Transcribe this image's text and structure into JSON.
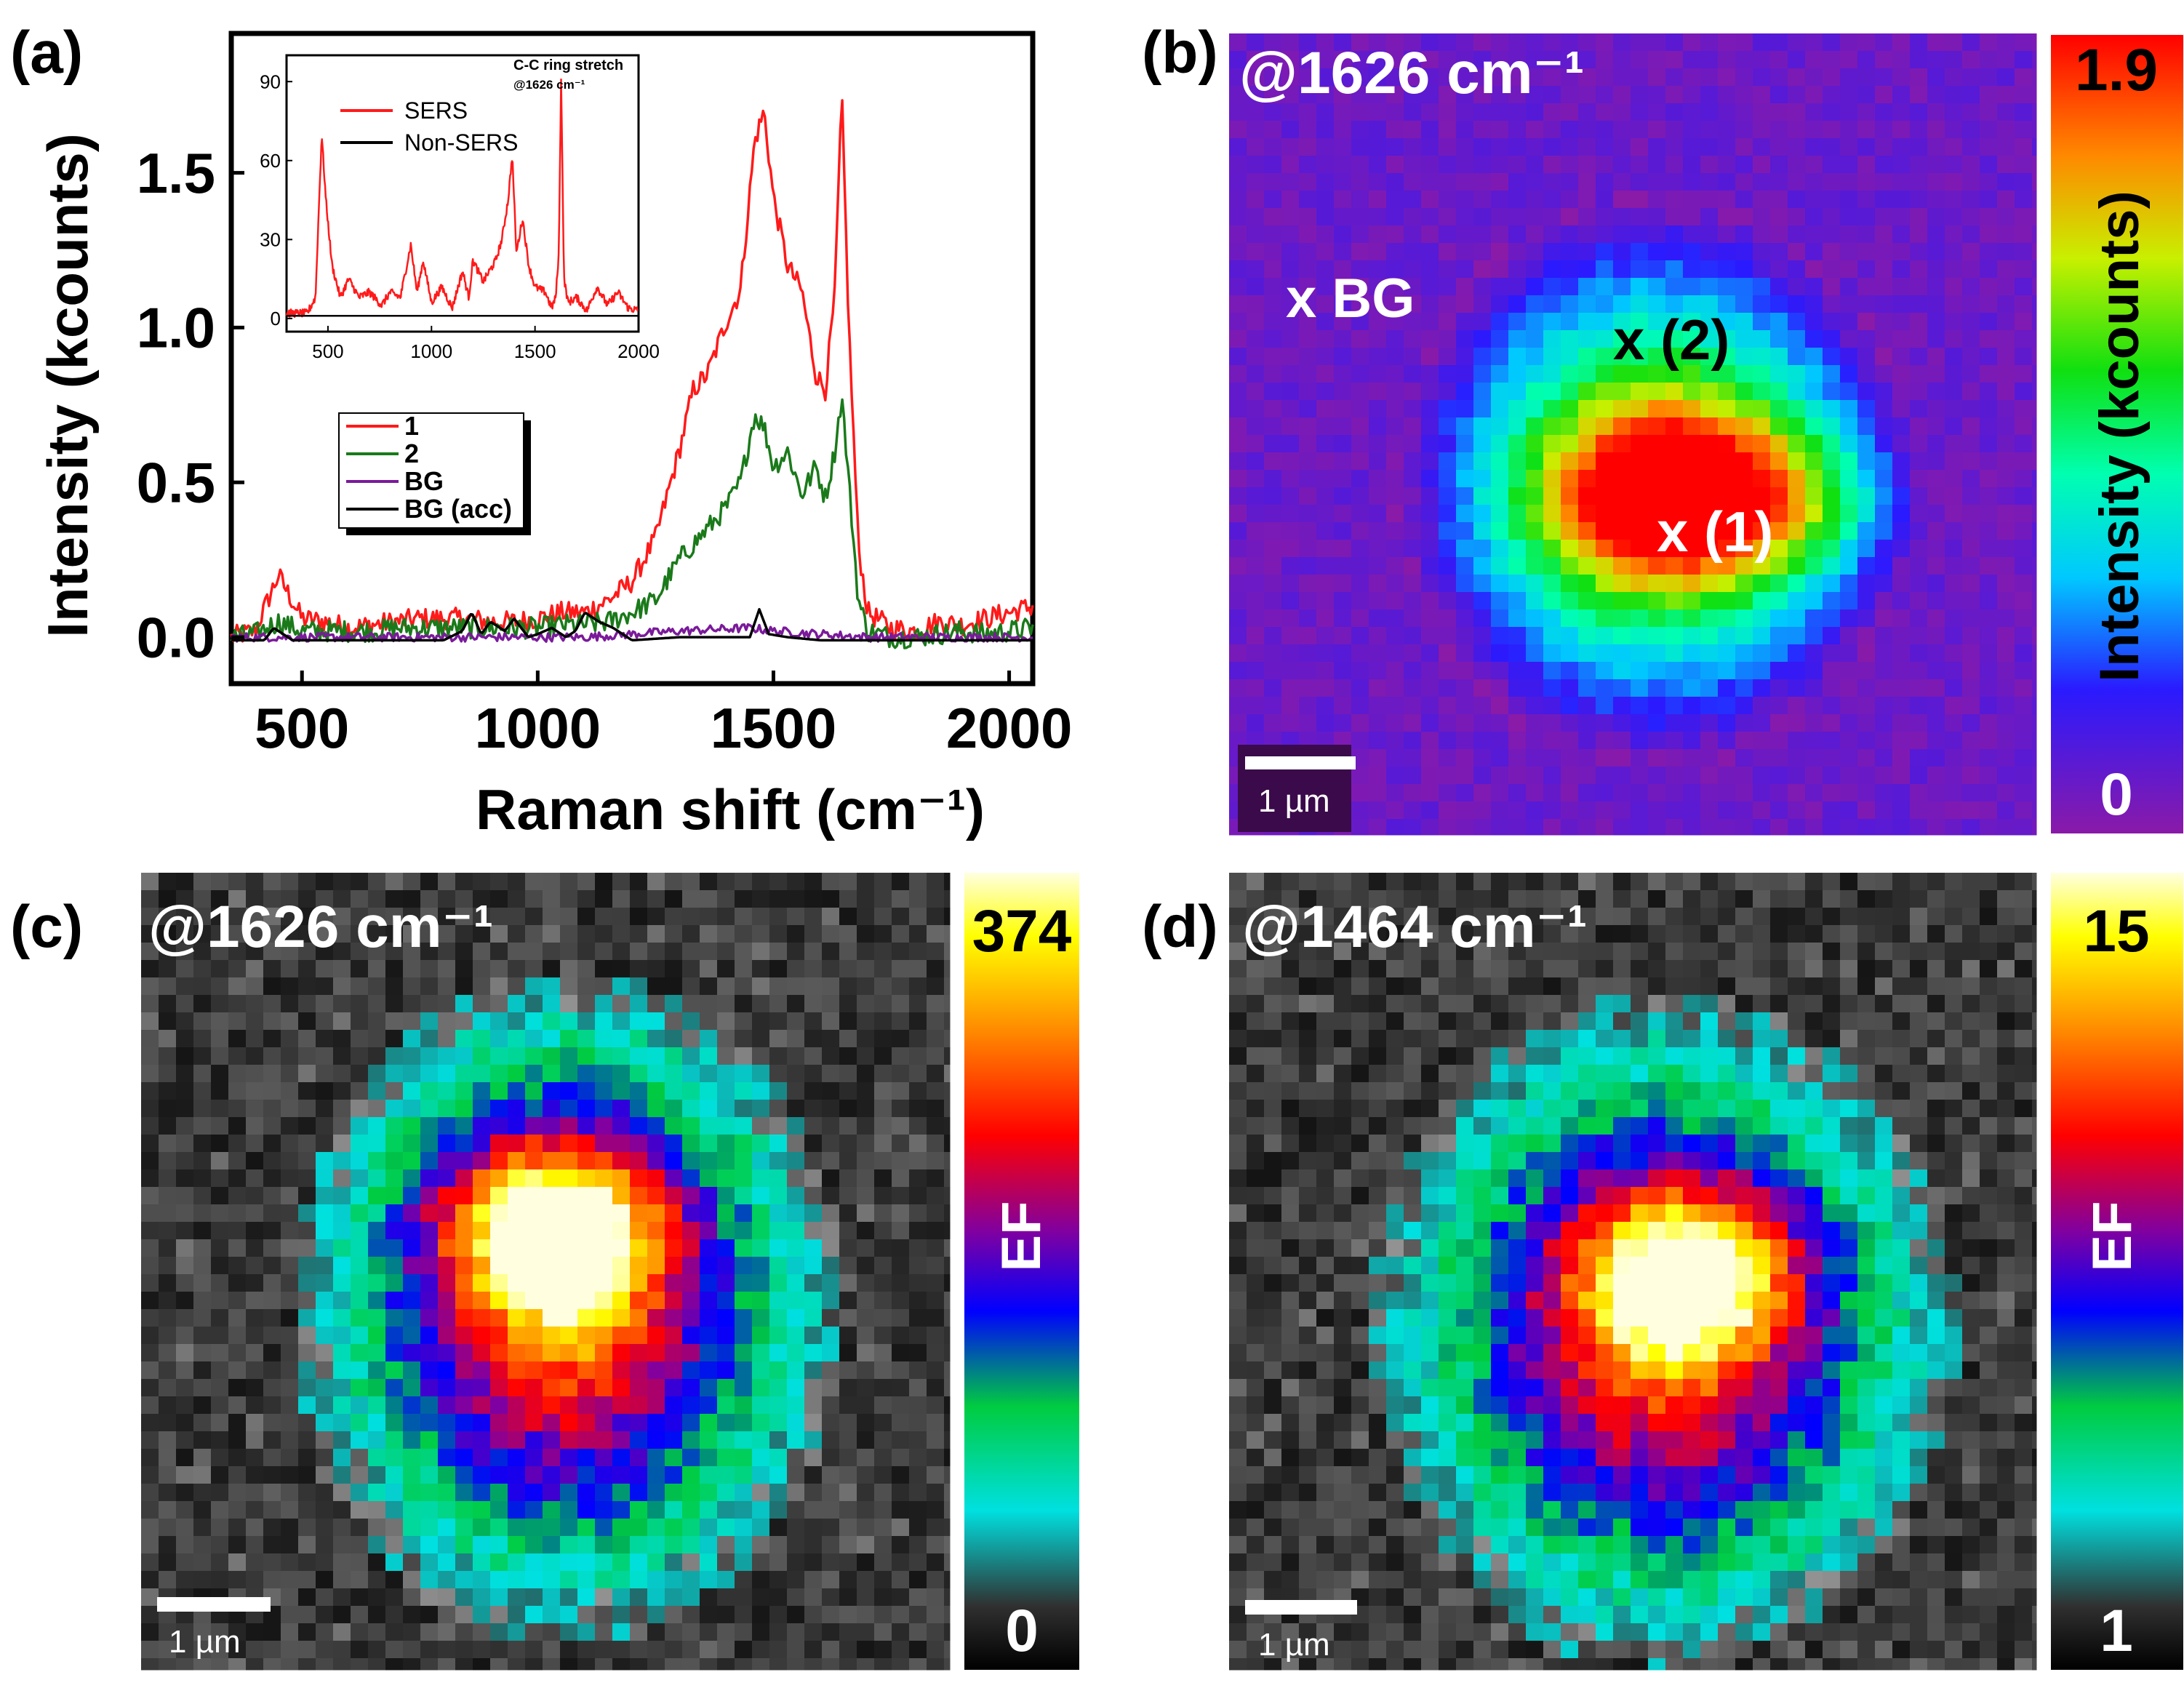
{
  "colors": {
    "red": "#ff1a1a",
    "green": "#1a7a1a",
    "purple": "#7a1a9a",
    "black": "#000000",
    "map_bg": "#8a1aa8"
  },
  "panel_labels": {
    "a": "(a)",
    "b": "(b)",
    "c": "(c)",
    "d": "(d)"
  },
  "chart_data": [
    {
      "panel": "(a)",
      "type": "line",
      "title": "",
      "xlabel": "Raman shift (cm⁻¹)",
      "ylabel": "Intensity (kcounts)",
      "xlim": [
        350,
        2050
      ],
      "ylim": [
        -0.15,
        1.95
      ],
      "xticks": [
        500,
        1000,
        1500,
        2000
      ],
      "xtick_labels": [
        "500",
        "1000",
        "1500",
        "2000"
      ],
      "yticks": [
        0.0,
        0.5,
        1.0,
        1.5
      ],
      "ytick_labels": [
        "0.0",
        "0.5",
        "1.0",
        "1.5"
      ],
      "legend": [
        "1",
        "2",
        "BG",
        "BG (acc)"
      ],
      "legend_position": "center-left",
      "series": [
        {
          "name": "1",
          "x": [
            350,
            400,
            450,
            500,
            550,
            600,
            650,
            700,
            750,
            800,
            850,
            900,
            950,
            1000,
            1050,
            1100,
            1150,
            1200,
            1250,
            1300,
            1330,
            1360,
            1400,
            1430,
            1460,
            1480,
            1500,
            1530,
            1560,
            1590,
            1610,
            1630,
            1645,
            1660,
            1680,
            1700,
            1750,
            1800,
            1850,
            1900,
            1950,
            2000,
            2050
          ],
          "y": [
            0.0,
            0.02,
            0.2,
            0.06,
            0.05,
            0.03,
            0.04,
            0.05,
            0.06,
            0.06,
            0.06,
            0.05,
            0.05,
            0.06,
            0.08,
            0.08,
            0.12,
            0.18,
            0.32,
            0.6,
            0.8,
            0.85,
            1.02,
            1.12,
            1.6,
            1.7,
            1.42,
            1.2,
            1.12,
            0.85,
            0.8,
            1.1,
            1.75,
            1.0,
            0.3,
            0.08,
            0.03,
            0.02,
            0.05,
            0.04,
            0.06,
            0.08,
            0.1
          ]
        },
        {
          "name": "2",
          "x": [
            350,
            400,
            450,
            500,
            550,
            600,
            650,
            700,
            750,
            800,
            850,
            900,
            950,
            1000,
            1050,
            1100,
            1150,
            1200,
            1250,
            1300,
            1330,
            1360,
            1400,
            1430,
            1460,
            1480,
            1500,
            1530,
            1560,
            1590,
            1610,
            1630,
            1645,
            1660,
            1680,
            1700,
            1750,
            1800,
            1850,
            1900,
            1950,
            2000,
            2050
          ],
          "y": [
            0.0,
            0.01,
            0.05,
            0.02,
            0.02,
            0.02,
            0.02,
            0.03,
            0.03,
            0.03,
            0.03,
            0.03,
            0.03,
            0.03,
            0.04,
            0.04,
            0.05,
            0.08,
            0.12,
            0.25,
            0.3,
            0.35,
            0.42,
            0.5,
            0.72,
            0.68,
            0.55,
            0.6,
            0.46,
            0.55,
            0.45,
            0.6,
            0.78,
            0.5,
            0.12,
            0.02,
            0.0,
            0.0,
            0.01,
            0.02,
            0.01,
            0.02,
            0.03
          ]
        },
        {
          "name": "BG",
          "x": [
            350,
            500,
            700,
            900,
            1100,
            1300,
            1450,
            1500,
            1600,
            1700,
            1850,
            2050
          ],
          "y": [
            0.0,
            0.0,
            0.0,
            0.0,
            0.0,
            0.02,
            0.03,
            0.02,
            0.01,
            0.0,
            0.0,
            0.0
          ]
        },
        {
          "name": "BG (acc)",
          "x": [
            350,
            420,
            440,
            480,
            520,
            600,
            700,
            800,
            840,
            860,
            880,
            900,
            930,
            950,
            980,
            1000,
            1030,
            1060,
            1080,
            1100,
            1130,
            1160,
            1200,
            1300,
            1400,
            1450,
            1470,
            1490,
            1530,
            1600,
            1700,
            1800,
            1900,
            2050
          ],
          "y": [
            -0.01,
            -0.01,
            0.03,
            -0.01,
            -0.01,
            -0.01,
            -0.01,
            -0.01,
            0.02,
            0.08,
            0.01,
            0.05,
            0.02,
            0.06,
            0.0,
            0.01,
            0.03,
            0.0,
            0.02,
            0.08,
            0.05,
            0.03,
            -0.01,
            0.0,
            0.0,
            0.0,
            0.09,
            0.01,
            0.0,
            -0.01,
            -0.01,
            -0.01,
            -0.01,
            -0.01
          ]
        }
      ]
    },
    {
      "panel": "(a) inset",
      "type": "line",
      "xlim": [
        300,
        2000
      ],
      "ylim": [
        -5,
        100
      ],
      "xticks": [
        500,
        1000,
        1500,
        2000
      ],
      "xtick_labels": [
        "500",
        "1000",
        "1500",
        "2000"
      ],
      "yticks": [
        0,
        30,
        60,
        90
      ],
      "ytick_labels": [
        "0",
        "30",
        "60",
        "90"
      ],
      "legend": [
        "SERS",
        "Non-SERS"
      ],
      "annotation_line1": "C-C ring stretch",
      "annotation_line2": "@1626 cm⁻¹",
      "series": [
        {
          "name": "SERS",
          "x": [
            300,
            400,
            440,
            455,
            470,
            490,
            520,
            560,
            600,
            650,
            700,
            760,
            800,
            850,
            900,
            930,
            960,
            1000,
            1050,
            1100,
            1150,
            1180,
            1200,
            1250,
            1280,
            1310,
            1340,
            1370,
            1390,
            1410,
            1440,
            1470,
            1500,
            1550,
            1580,
            1600,
            1615,
            1626,
            1640,
            1660,
            1700,
            1750,
            1800,
            1850,
            1900,
            1950,
            2000
          ],
          "y": [
            2,
            2,
            8,
            40,
            70,
            45,
            20,
            8,
            15,
            8,
            10,
            5,
            10,
            8,
            28,
            10,
            22,
            6,
            12,
            4,
            18,
            8,
            22,
            14,
            18,
            22,
            30,
            45,
            62,
            25,
            38,
            20,
            12,
            10,
            4,
            8,
            25,
            92,
            15,
            6,
            8,
            3,
            12,
            5,
            10,
            4,
            3
          ]
        },
        {
          "name": "Non-SERS",
          "x": [
            300,
            500,
            1000,
            1500,
            2000
          ],
          "y": [
            1,
            1,
            1,
            1,
            1
          ]
        }
      ]
    },
    {
      "panel": "(b)",
      "type": "heatmap",
      "title": "@1626 cm⁻¹",
      "colorbar_label": "Intensity (kcounts)",
      "colorbar_max": "1.9",
      "colorbar_min": "0",
      "scale_bar": "1 µm",
      "points": [
        "x BG",
        "x (2)",
        "x (1)"
      ]
    },
    {
      "panel": "(c)",
      "type": "heatmap",
      "title": "@1626 cm⁻¹",
      "colorbar_label": "EF",
      "colorbar_max": "374",
      "colorbar_min": "0",
      "scale_bar": "1 µm"
    },
    {
      "panel": "(d)",
      "type": "heatmap",
      "title": "@1464 cm⁻¹",
      "colorbar_label": "EF",
      "colorbar_max": "15",
      "colorbar_min": "1",
      "scale_bar": "1 µm"
    }
  ]
}
